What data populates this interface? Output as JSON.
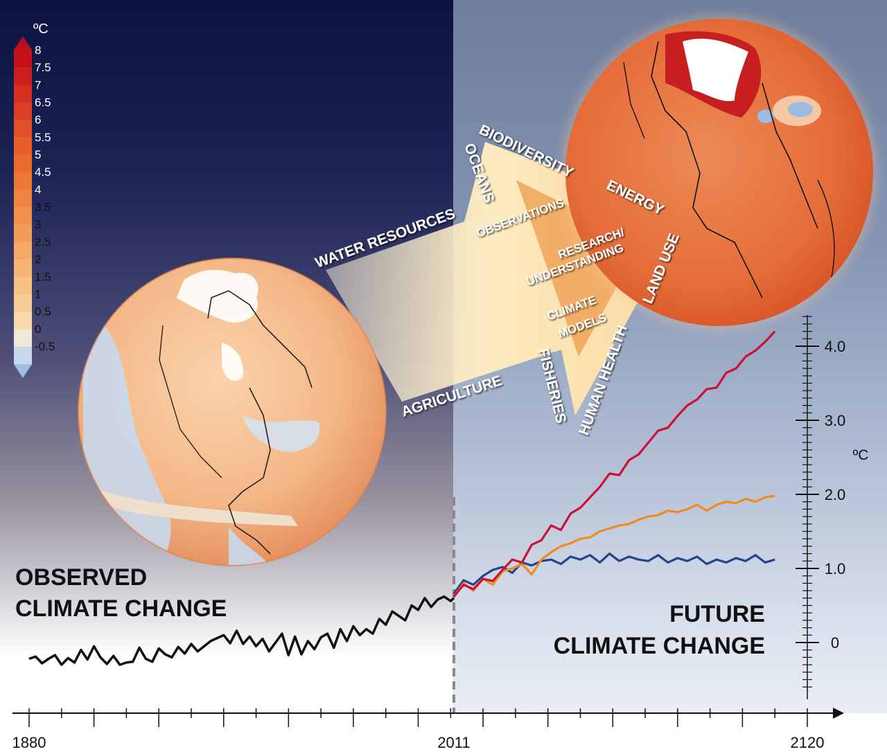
{
  "colorbar": {
    "unit": "ºC",
    "labels": [
      "8",
      "7.5",
      "7",
      "6.5",
      "6",
      "5.5",
      "5",
      "4.5",
      "4",
      "3.5",
      "3",
      "2.5",
      "2",
      "1.5",
      "1",
      "0.5",
      "0",
      "-0.5"
    ],
    "colors": [
      "#c4101a",
      "#cc1e1e",
      "#d42f22",
      "#db4024",
      "#e14f26",
      "#e65e2a",
      "#ea6b30",
      "#ed7838",
      "#f08442",
      "#f2904d",
      "#f39c5a",
      "#f5a867",
      "#f6b476",
      "#f7c085",
      "#f8cc96",
      "#f9d8a9",
      "#efe8d8",
      "#c6d8ec"
    ]
  },
  "arrow": {
    "outer_labels": [
      "WATER RESOURCES",
      "OCEANS",
      "BIODIVERSITY",
      "ENERGY",
      "LAND USE",
      "HUMAN HEALTH",
      "FISHERIES",
      "AGRICULTURE"
    ],
    "inner_labels": [
      "OBSERVATIONS",
      "RESEARCH/",
      "UNDERSTANDING",
      "CLIMATE",
      "MODELS"
    ]
  },
  "headings": {
    "observed_line1": "OBSERVED",
    "observed_line2": "CLIMATE CHANGE",
    "future_line1": "FUTURE",
    "future_line2": "CLIMATE CHANGE"
  },
  "chart_data": {
    "type": "line",
    "title": "",
    "xlabel": "",
    "ylabel": "ºC",
    "x_tick_labels": [
      "1880",
      "2011",
      "2120"
    ],
    "y_tick_labels": [
      "0",
      "1.0",
      "2.0",
      "3.0",
      "4.0"
    ],
    "xlim": [
      1880,
      2120
    ],
    "ylim": [
      -0.6,
      4.4
    ],
    "divider_year": 2011,
    "colors": {
      "observed": "#111111",
      "high": "#cc1133",
      "medium": "#f28a1e",
      "low": "#27418a"
    },
    "series": [
      {
        "key": "observed",
        "x": [
          1880,
          1882,
          1884,
          1886,
          1888,
          1890,
          1892,
          1894,
          1896,
          1898,
          1900,
          1902,
          1904,
          1906,
          1908,
          1910,
          1912,
          1914,
          1916,
          1918,
          1920,
          1922,
          1924,
          1926,
          1928,
          1930,
          1932,
          1934,
          1936,
          1938,
          1940,
          1942,
          1944,
          1946,
          1948,
          1950,
          1952,
          1954,
          1956,
          1958,
          1960,
          1962,
          1964,
          1966,
          1968,
          1970,
          1972,
          1974,
          1976,
          1978,
          1980,
          1982,
          1984,
          1986,
          1988,
          1990,
          1992,
          1994,
          1996,
          1998,
          2000,
          2002,
          2004,
          2006,
          2008,
          2010,
          2011
        ],
        "values": [
          -0.22,
          -0.19,
          -0.28,
          -0.22,
          -0.17,
          -0.3,
          -0.21,
          -0.27,
          -0.1,
          -0.23,
          -0.05,
          -0.2,
          -0.29,
          -0.18,
          -0.3,
          -0.27,
          -0.26,
          -0.07,
          -0.22,
          -0.26,
          -0.08,
          -0.16,
          -0.2,
          -0.06,
          -0.15,
          -0.02,
          -0.12,
          -0.05,
          0.02,
          0.06,
          0.1,
          -0.01,
          0.16,
          -0.02,
          0.08,
          -0.05,
          0.05,
          -0.12,
          0.0,
          0.12,
          -0.17,
          0.08,
          -0.16,
          0.02,
          -0.09,
          0.07,
          0.12,
          -0.07,
          0.18,
          0.02,
          0.22,
          0.1,
          0.18,
          0.12,
          0.32,
          0.24,
          0.42,
          0.36,
          0.3,
          0.5,
          0.44,
          0.6,
          0.48,
          0.58,
          0.62,
          0.56,
          0.6
        ]
      },
      {
        "key": "high",
        "x": [
          2011,
          2014,
          2017,
          2020,
          2023,
          2026,
          2029,
          2032,
          2035,
          2038,
          2041,
          2044,
          2047,
          2050,
          2053,
          2056,
          2059,
          2062,
          2065,
          2068,
          2071,
          2074,
          2077,
          2080,
          2083,
          2086,
          2089,
          2092,
          2095,
          2098,
          2101,
          2104,
          2107,
          2110
        ],
        "values": [
          0.62,
          0.78,
          0.72,
          0.86,
          0.83,
          0.98,
          1.12,
          1.08,
          1.32,
          1.38,
          1.58,
          1.52,
          1.74,
          1.82,
          1.96,
          2.1,
          2.28,
          2.26,
          2.46,
          2.54,
          2.7,
          2.86,
          2.9,
          3.06,
          3.2,
          3.28,
          3.42,
          3.44,
          3.64,
          3.7,
          3.86,
          3.94,
          4.06,
          4.2
        ]
      },
      {
        "key": "medium",
        "x": [
          2011,
          2014,
          2017,
          2020,
          2023,
          2026,
          2029,
          2032,
          2035,
          2038,
          2041,
          2044,
          2047,
          2050,
          2053,
          2056,
          2059,
          2062,
          2065,
          2068,
          2071,
          2074,
          2077,
          2080,
          2083,
          2086,
          2089,
          2092,
          2095,
          2098,
          2101,
          2104,
          2107,
          2110
        ],
        "values": [
          0.62,
          0.8,
          0.7,
          0.86,
          0.78,
          0.96,
          1.0,
          1.06,
          0.92,
          1.12,
          1.22,
          1.3,
          1.34,
          1.4,
          1.42,
          1.5,
          1.54,
          1.58,
          1.6,
          1.66,
          1.7,
          1.72,
          1.78,
          1.76,
          1.8,
          1.86,
          1.78,
          1.86,
          1.9,
          1.88,
          1.94,
          1.9,
          1.96,
          1.98
        ]
      },
      {
        "key": "low",
        "x": [
          2011,
          2014,
          2017,
          2020,
          2023,
          2026,
          2029,
          2032,
          2035,
          2038,
          2041,
          2044,
          2047,
          2050,
          2053,
          2056,
          2059,
          2062,
          2065,
          2068,
          2071,
          2074,
          2077,
          2080,
          2083,
          2086,
          2089,
          2092,
          2095,
          2098,
          2101,
          2104,
          2107,
          2110
        ],
        "values": [
          0.66,
          0.84,
          0.78,
          0.9,
          0.98,
          1.02,
          0.94,
          1.08,
          1.04,
          1.1,
          1.12,
          1.06,
          1.16,
          1.12,
          1.18,
          1.08,
          1.2,
          1.1,
          1.16,
          1.12,
          1.1,
          1.18,
          1.08,
          1.14,
          1.1,
          1.16,
          1.06,
          1.12,
          1.08,
          1.14,
          1.1,
          1.18,
          1.08,
          1.12
        ]
      }
    ]
  }
}
